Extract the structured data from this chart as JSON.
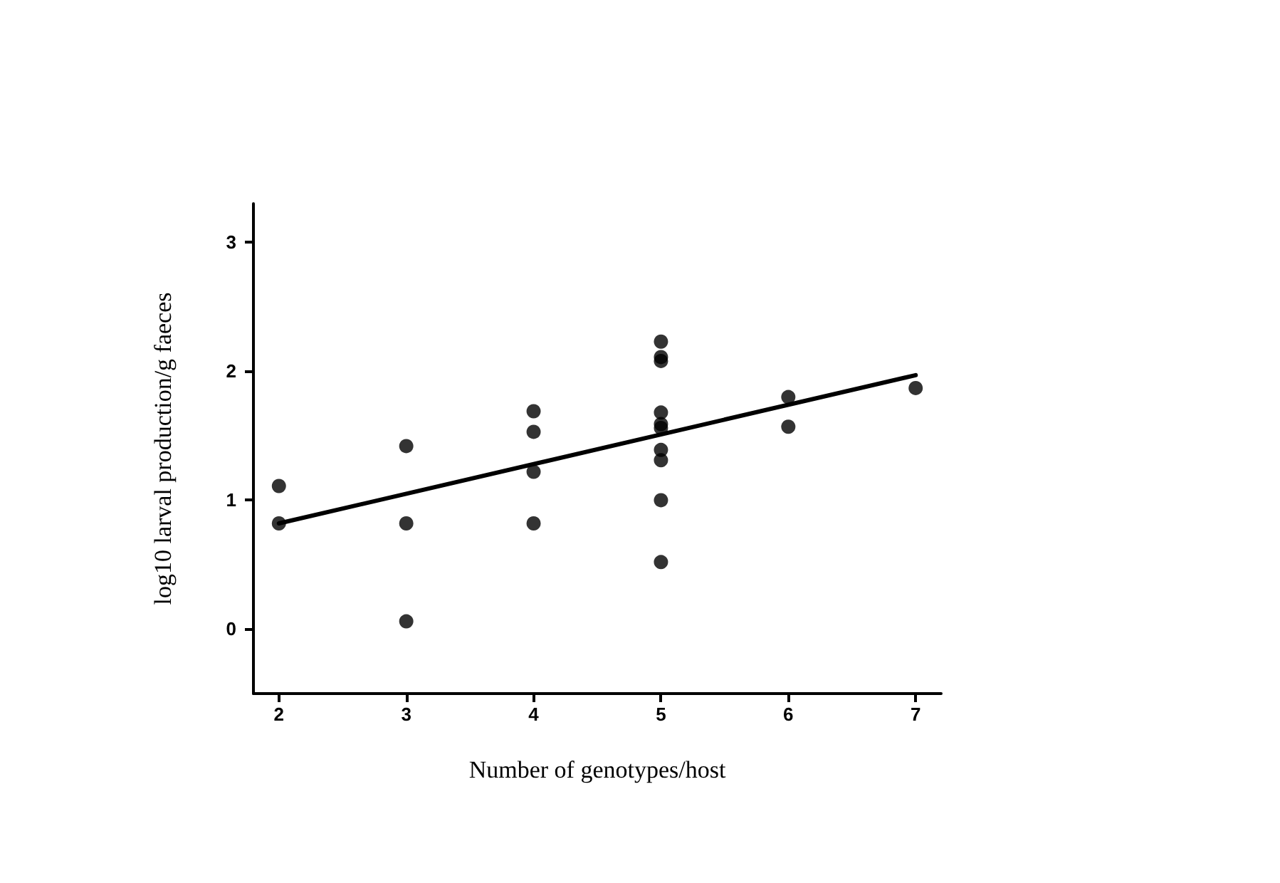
{
  "chart_data": {
    "type": "scatter",
    "xlabel": "Number of genotypes/host",
    "ylabel": "log10 larval production/g faeces",
    "xlim": [
      1.8,
      7.2
    ],
    "xticks": [
      2,
      3,
      4,
      5,
      6,
      7
    ],
    "ylim": [
      -0.5,
      3.3
    ],
    "yticks": [
      0,
      1,
      2,
      3
    ],
    "grid": false,
    "marker": "circle",
    "series": [
      {
        "color": "#000000",
        "x": [
          2,
          2,
          3,
          3,
          3,
          4,
          4,
          4,
          4,
          5,
          5,
          5,
          5,
          5,
          5,
          5,
          5,
          5,
          5,
          6,
          6,
          7
        ],
        "values": [
          1.11,
          0.82,
          1.42,
          0.82,
          0.06,
          1.69,
          1.53,
          1.22,
          0.82,
          2.23,
          2.11,
          2.08,
          1.68,
          1.59,
          1.56,
          1.39,
          1.31,
          1.0,
          0.52,
          1.8,
          1.57,
          1.87
        ]
      },
      {
        "type": "line",
        "color": "#000000",
        "x": [
          2,
          7
        ],
        "values": [
          0.82,
          1.97
        ],
        "marker": "none",
        "line_style": "solid"
      }
    ]
  }
}
